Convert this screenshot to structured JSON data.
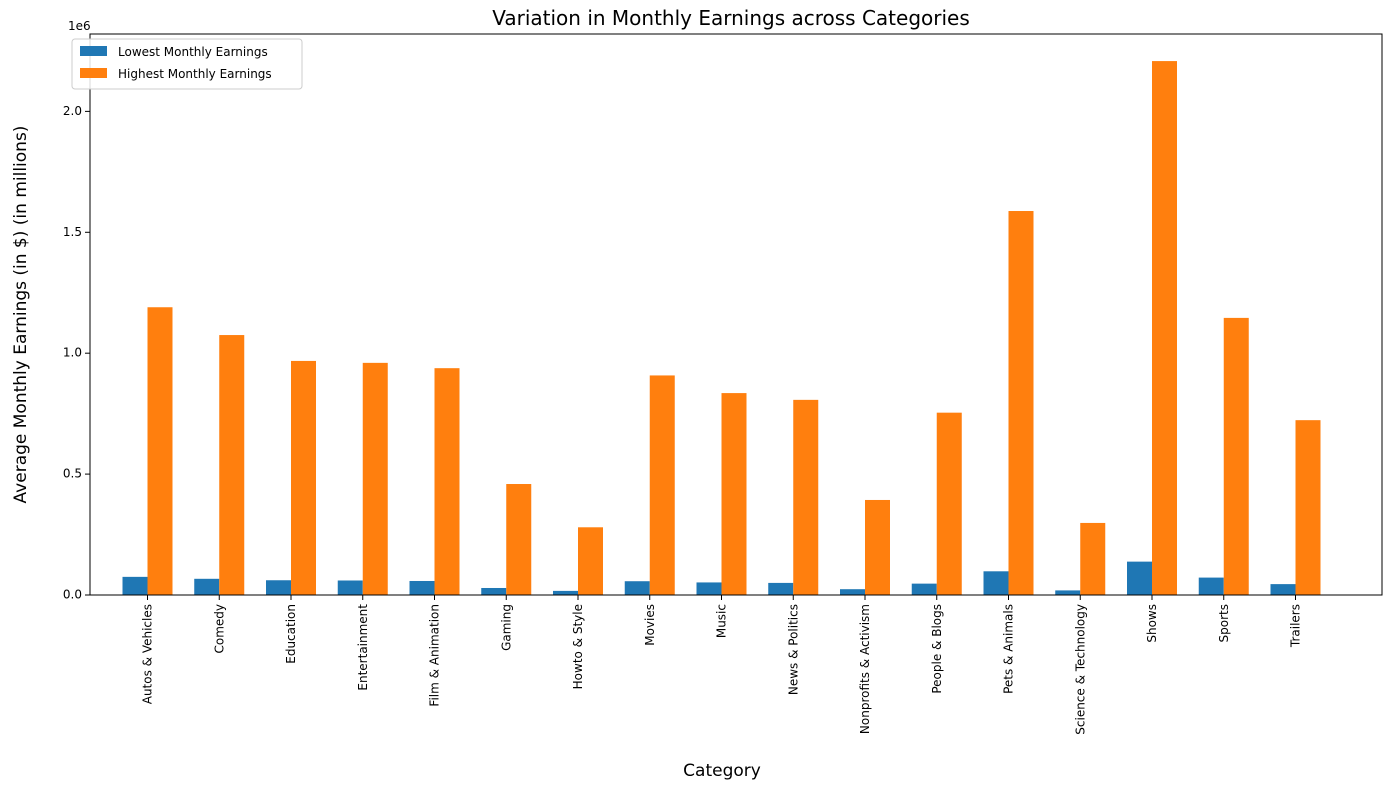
{
  "chart_data": {
    "type": "bar",
    "title": "Variation in Monthly Earnings across Categories",
    "xlabel": "Category",
    "ylabel": "Average Monthly Earnings (in $) (in millions)",
    "offset_text": "1e6",
    "ylim": [
      0,
      2320000
    ],
    "yticks": [
      0,
      500000,
      1000000,
      1500000,
      2000000
    ],
    "ytick_labels": [
      "0.0",
      "0.5",
      "1.0",
      "1.5",
      "2.0"
    ],
    "grid": false,
    "legend_position": "top-left",
    "categories": [
      "Autos & Vehicles",
      "Comedy",
      "Education",
      "Entertainment",
      "Film & Animation",
      "Gaming",
      "Howto & Style",
      "Movies",
      "Music",
      "News & Politics",
      "Nonprofits & Activism",
      "People & Blogs",
      "Pets & Animals",
      "Science & Technology",
      "Shows",
      "Sports",
      "Trailers"
    ],
    "series": [
      {
        "name": "Lowest Monthly Earnings",
        "color": "#1f77b4",
        "values": [
          75000,
          67000,
          61000,
          60000,
          58000,
          29000,
          17000,
          57000,
          52000,
          50000,
          24000,
          47000,
          98000,
          19000,
          138000,
          72000,
          45000
        ]
      },
      {
        "name": "Highest Monthly Earnings",
        "color": "#ff7f0e",
        "values": [
          1190000,
          1075000,
          968000,
          960000,
          938000,
          459000,
          280000,
          908000,
          835000,
          807000,
          393000,
          754000,
          1588000,
          298000,
          2208000,
          1146000,
          723000
        ]
      }
    ]
  }
}
